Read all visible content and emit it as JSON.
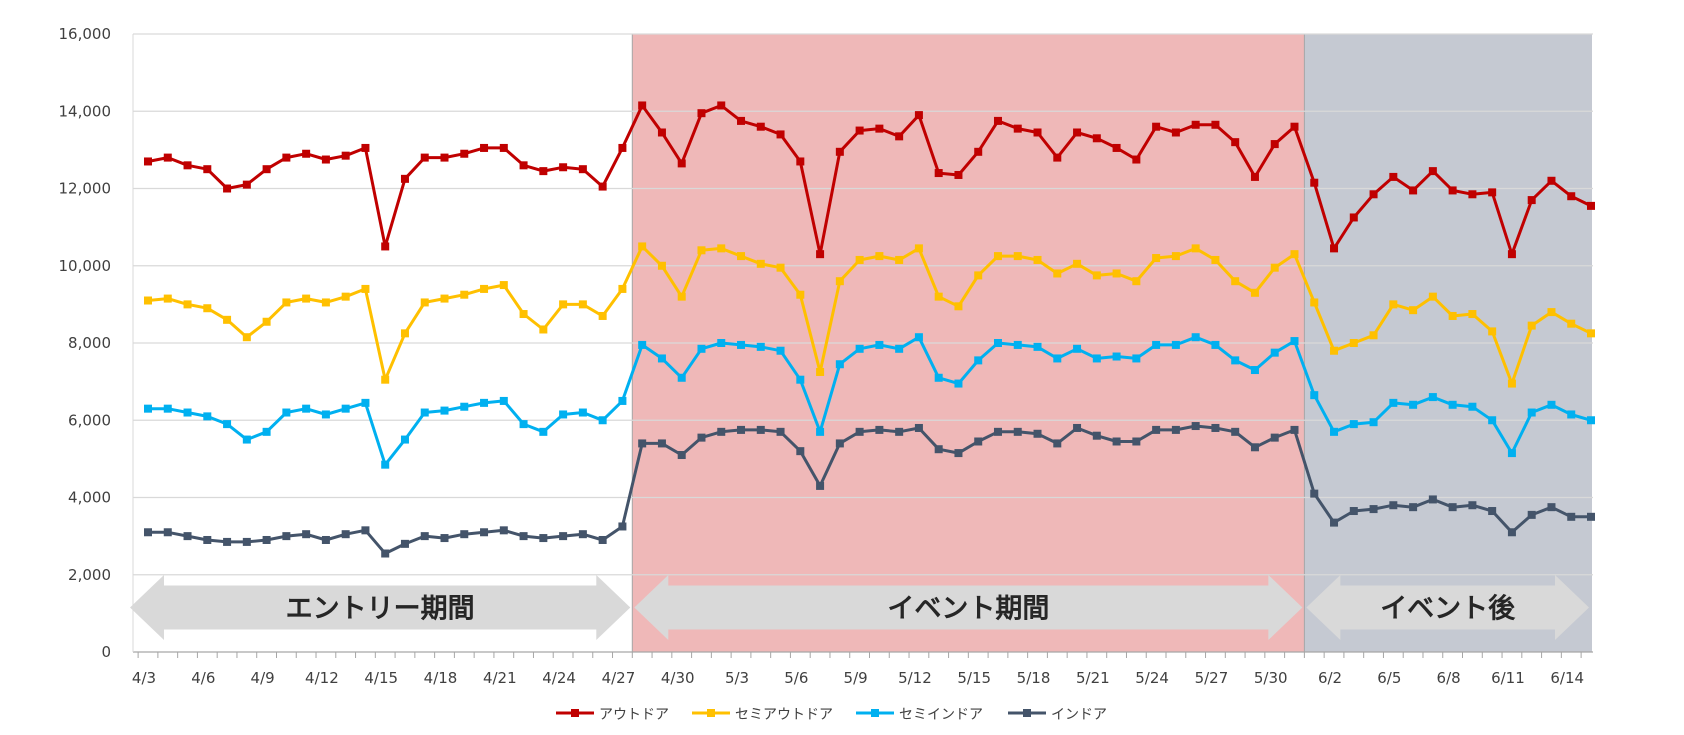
{
  "chart_data": {
    "type": "line",
    "y_axis": {
      "min": 0,
      "max": 16000,
      "step": 2000,
      "tick_labels": [
        "0",
        "2,000",
        "4,000",
        "6,000",
        "8,000",
        "10,000",
        "12,000",
        "14,000",
        "16,000"
      ]
    },
    "x_tick_labels": [
      "4/3",
      "4/6",
      "4/9",
      "4/12",
      "4/15",
      "4/18",
      "4/21",
      "4/24",
      "4/27",
      "4/30",
      "5/3",
      "5/6",
      "5/9",
      "5/12",
      "5/15",
      "5/18",
      "5/21",
      "5/24",
      "5/27",
      "5/30",
      "6/2",
      "6/5",
      "6/8",
      "6/11",
      "6/14"
    ],
    "x_note": "Daily values from 4/3 to 6/15 (74 days); index 0 = 4/3.",
    "gridlines": true,
    "legend_position": "bottom",
    "periods": [
      {
        "label": "エントリー期間",
        "start_day": 0,
        "end_day": 24,
        "color": ""
      },
      {
        "label": "イベント期間",
        "start_day": 24,
        "end_day": 58,
        "color": "#efb8b8"
      },
      {
        "label": "イベント後",
        "start_day": 58,
        "end_day": 73,
        "color": "#c5c9d2"
      }
    ],
    "series": [
      {
        "name": "アウトドア",
        "color": "#c00000",
        "values": [
          12700,
          12800,
          12600,
          12500,
          12000,
          12100,
          12500,
          12800,
          12900,
          12750,
          12850,
          13050,
          10500,
          12250,
          12800,
          12800,
          12900,
          13050,
          13050,
          12600,
          12450,
          12550,
          12500,
          12050,
          13050,
          14150,
          13450,
          12650,
          13950,
          14150,
          13750,
          13600,
          13400,
          12700,
          10300,
          12950,
          13500,
          13550,
          13350,
          13900,
          12400,
          12350,
          12950,
          13750,
          13550,
          13450,
          12800,
          13450,
          13300,
          13050,
          12750,
          13600,
          13450,
          13650,
          13650,
          13200,
          12300,
          13150,
          13600,
          12150,
          10450,
          11250,
          11850,
          12300,
          11950,
          12450,
          11950,
          11850,
          11900,
          10300,
          11700,
          12200,
          11800,
          11550
        ]
      },
      {
        "name": "セミアウトドア",
        "color": "#ffc000",
        "values": [
          9100,
          9150,
          9000,
          8900,
          8600,
          8150,
          8550,
          9050,
          9150,
          9050,
          9200,
          9400,
          7050,
          8250,
          9050,
          9150,
          9250,
          9400,
          9500,
          8750,
          8350,
          9000,
          9000,
          8700,
          9400,
          10500,
          10000,
          9200,
          10400,
          10450,
          10250,
          10050,
          9950,
          9250,
          7250,
          9600,
          10150,
          10250,
          10150,
          10450,
          9200,
          8950,
          9750,
          10250,
          10250,
          10150,
          9800,
          10050,
          9750,
          9800,
          9600,
          10200,
          10250,
          10450,
          10150,
          9600,
          9300,
          9950,
          10300,
          9050,
          7800,
          8000,
          8200,
          9000,
          8850,
          9200,
          8700,
          8750,
          8300,
          6950,
          8450,
          8800,
          8500,
          8250
        ]
      },
      {
        "name": "セミインドア",
        "color": "#00b0f0",
        "values": [
          6300,
          6300,
          6200,
          6100,
          5900,
          5500,
          5700,
          6200,
          6300,
          6150,
          6300,
          6450,
          4850,
          5500,
          6200,
          6250,
          6350,
          6450,
          6500,
          5900,
          5700,
          6150,
          6200,
          6000,
          6500,
          7950,
          7600,
          7100,
          7850,
          8000,
          7950,
          7900,
          7800,
          7050,
          5700,
          7450,
          7850,
          7950,
          7850,
          8150,
          7100,
          6950,
          7550,
          8000,
          7950,
          7900,
          7600,
          7850,
          7600,
          7650,
          7600,
          7950,
          7950,
          8150,
          7950,
          7550,
          7300,
          7750,
          8050,
          6650,
          5700,
          5900,
          5950,
          6450,
          6400,
          6600,
          6400,
          6350,
          6000,
          5150,
          6200,
          6400,
          6150,
          6000
        ]
      },
      {
        "name": "インドア",
        "color": "#44546a",
        "values": [
          3100,
          3100,
          3000,
          2900,
          2850,
          2850,
          2900,
          3000,
          3050,
          2900,
          3050,
          3150,
          2550,
          2800,
          3000,
          2950,
          3050,
          3100,
          3150,
          3000,
          2950,
          3000,
          3050,
          2900,
          3250,
          5400,
          5400,
          5100,
          5550,
          5700,
          5750,
          5750,
          5700,
          5200,
          4300,
          5400,
          5700,
          5750,
          5700,
          5800,
          5250,
          5150,
          5450,
          5700,
          5700,
          5650,
          5400,
          5800,
          5600,
          5450,
          5450,
          5750,
          5750,
          5850,
          5800,
          5700,
          5300,
          5550,
          5750,
          4100,
          3350,
          3650,
          3700,
          3800,
          3750,
          3950,
          3750,
          3800,
          3650,
          3100,
          3550,
          3750,
          3500,
          3500
        ]
      }
    ]
  }
}
